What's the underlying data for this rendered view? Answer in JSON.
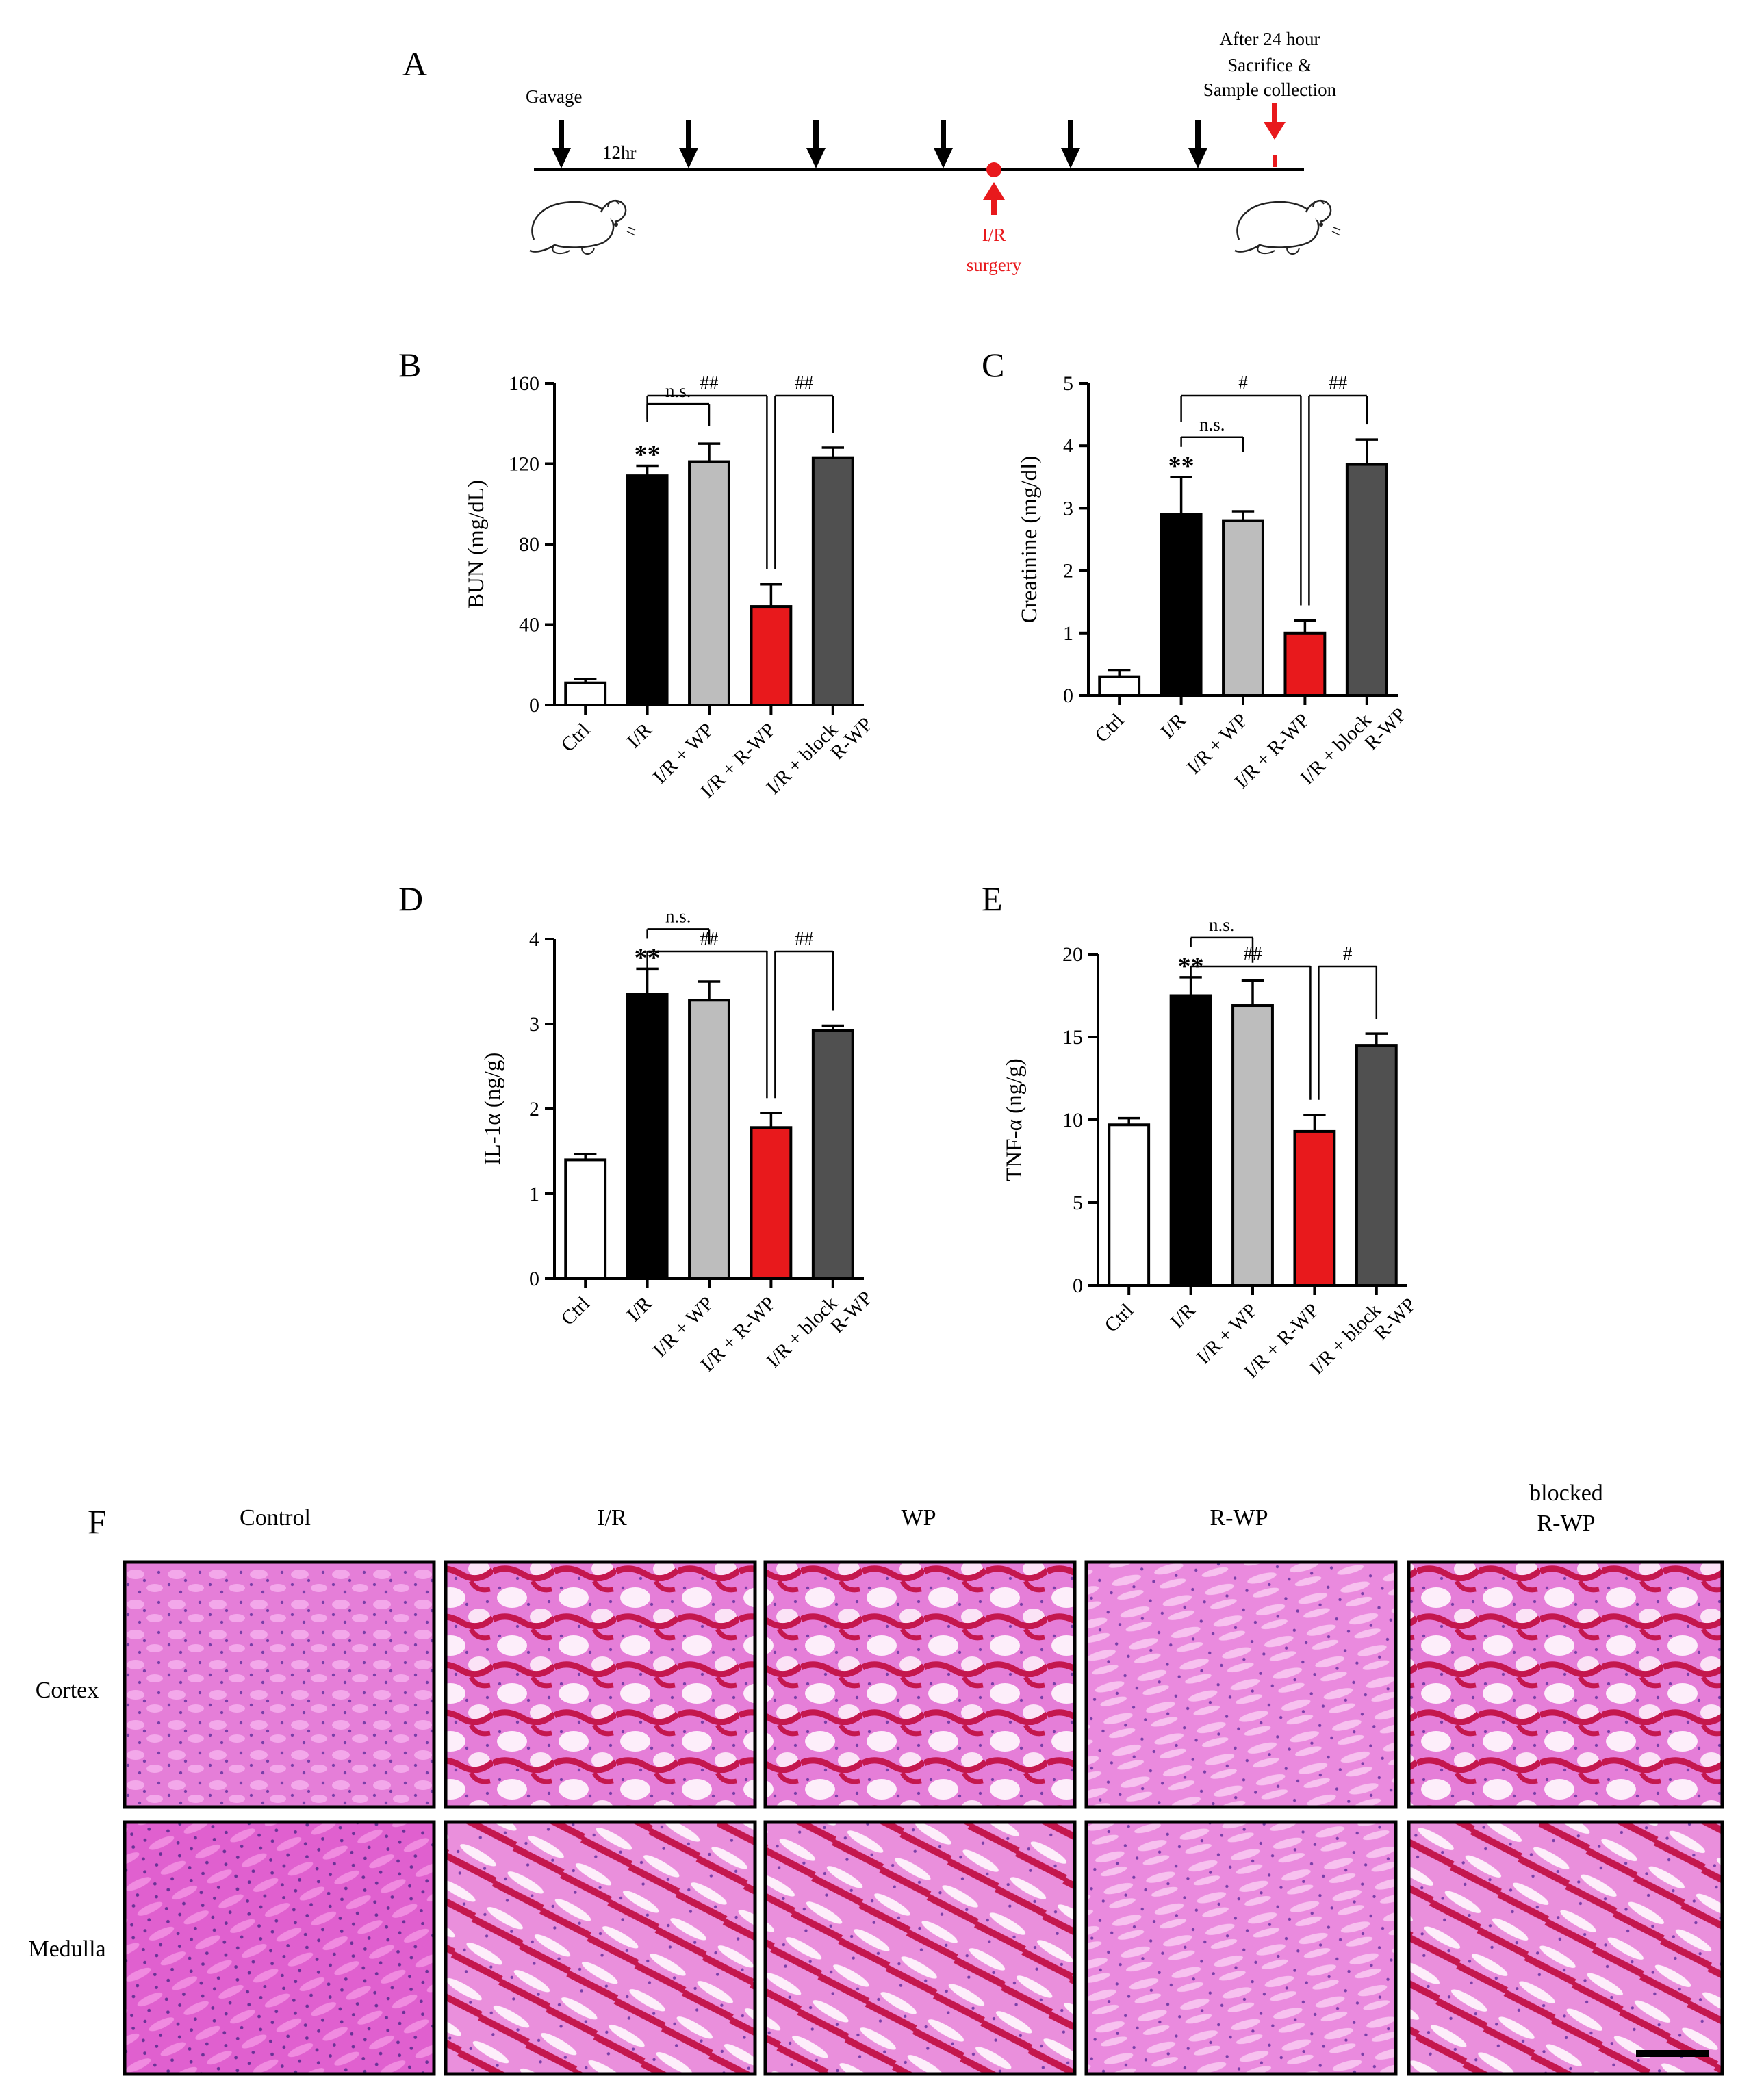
{
  "panel_labels": [
    "A",
    "B",
    "C",
    "D",
    "E",
    "F"
  ],
  "timeline": {
    "gavage_label": "Gavage",
    "interval_label": "12hr",
    "after_lines": [
      "After 24 hour",
      "Sacrifice &",
      "Sample collection"
    ],
    "surgery_lines": [
      "I/R",
      "surgery"
    ],
    "gavage_doses": 6,
    "black_arrow_color": "#000000",
    "red_color": "#e8191c",
    "icons": [
      "mouse-icon",
      "mouse-icon",
      "arrow-down-icon",
      "arrow-up-icon"
    ]
  },
  "chart_data": [
    {
      "id": "B",
      "type": "bar",
      "categories": [
        "Ctrl",
        "I/R",
        "I/R + WP",
        "I/R + R-WP",
        "I/R + block R-WP"
      ],
      "category_lines": [
        [
          "Ctrl"
        ],
        [
          "I/R"
        ],
        [
          "I/R + WP"
        ],
        [
          "I/R + R-WP"
        ],
        [
          "I/R + block",
          "R-WP"
        ]
      ],
      "values": [
        11,
        114,
        121,
        49,
        123
      ],
      "errors": [
        2,
        5,
        9,
        11,
        5
      ],
      "colors": [
        "#ffffff",
        "#000000",
        "#bdbdbd",
        "#e8191c",
        "#505050"
      ],
      "ylabel": "BUN  (mg/dL)",
      "ylim": [
        0,
        160
      ],
      "yticks": [
        0,
        40,
        80,
        120,
        160
      ],
      "stars": [
        {
          "bar": 1,
          "text": "**"
        }
      ],
      "brackets": [
        {
          "label": "n.s.",
          "from": 1,
          "to": 2,
          "type": "simple"
        },
        {
          "label": "##",
          "from": 1,
          "to": 3,
          "type": "double"
        },
        {
          "label": "##",
          "from": 3,
          "to": 4,
          "type": "simple"
        }
      ],
      "grid": false
    },
    {
      "id": "C",
      "type": "bar",
      "categories": [
        "Ctrl",
        "I/R",
        "I/R + WP",
        "I/R + R-WP",
        "I/R + block R-WP"
      ],
      "category_lines": [
        [
          "Ctrl"
        ],
        [
          "I/R"
        ],
        [
          "I/R + WP"
        ],
        [
          "I/R + R-WP"
        ],
        [
          "I/R + block",
          "R-WP"
        ]
      ],
      "values": [
        0.3,
        2.9,
        2.8,
        1.0,
        3.7
      ],
      "errors": [
        0.1,
        0.6,
        0.15,
        0.2,
        0.4
      ],
      "colors": [
        "#ffffff",
        "#000000",
        "#bdbdbd",
        "#e8191c",
        "#505050"
      ],
      "ylabel": "Creatinine (mg/dl)",
      "ylim": [
        0,
        5
      ],
      "yticks": [
        0,
        1,
        2,
        3,
        4,
        5
      ],
      "stars": [
        {
          "bar": 1,
          "text": "**"
        }
      ],
      "brackets": [
        {
          "label": "n.s.",
          "from": 1,
          "to": 2,
          "type": "simple"
        },
        {
          "label": "#",
          "from": 1,
          "to": 3,
          "type": "double"
        },
        {
          "label": "##",
          "from": 3,
          "to": 4,
          "type": "simple"
        }
      ],
      "grid": false
    },
    {
      "id": "D",
      "type": "bar",
      "categories": [
        "Ctrl",
        "I/R",
        "I/R + WP",
        "I/R + R-WP",
        "I/R + block R-WP"
      ],
      "category_lines": [
        [
          "Ctrl"
        ],
        [
          "I/R"
        ],
        [
          "I/R + WP"
        ],
        [
          "I/R + R-WP"
        ],
        [
          "I/R + block",
          "R-WP"
        ]
      ],
      "values": [
        1.4,
        3.35,
        3.28,
        1.78,
        2.92
      ],
      "errors": [
        0.07,
        0.3,
        0.22,
        0.17,
        0.06
      ],
      "colors": [
        "#ffffff",
        "#000000",
        "#bdbdbd",
        "#e8191c",
        "#505050"
      ],
      "ylabel": "IL-1α (ng/g)",
      "ylim": [
        0,
        4
      ],
      "yticks": [
        0,
        1,
        2,
        3,
        4
      ],
      "stars": [
        {
          "bar": 1,
          "text": "**"
        }
      ],
      "brackets": [
        {
          "label": "n.s.",
          "from": 1,
          "to": 2,
          "type": "simple"
        },
        {
          "label": "##",
          "from": 1,
          "to": 3,
          "type": "double"
        },
        {
          "label": "##",
          "from": 3,
          "to": 4,
          "type": "simple"
        }
      ],
      "grid": false
    },
    {
      "id": "E",
      "type": "bar",
      "categories": [
        "Ctrl",
        "I/R",
        "I/R + WP",
        "I/R + R-WP",
        "I/R + block R-WP"
      ],
      "category_lines": [
        [
          "Ctrl"
        ],
        [
          "I/R"
        ],
        [
          "I/R + WP"
        ],
        [
          "I/R + R-WP"
        ],
        [
          "I/R + block",
          "R-WP"
        ]
      ],
      "values": [
        9.7,
        17.5,
        16.9,
        9.3,
        14.5
      ],
      "errors": [
        0.4,
        1.1,
        1.5,
        1.0,
        0.7
      ],
      "colors": [
        "#ffffff",
        "#000000",
        "#bdbdbd",
        "#e8191c",
        "#505050"
      ],
      "ylabel": "TNF-α (ng/g)",
      "ylim": [
        0,
        20
      ],
      "yticks": [
        0,
        5,
        10,
        15,
        20
      ],
      "stars": [
        {
          "bar": 1,
          "text": "**"
        }
      ],
      "brackets": [
        {
          "label": "n.s.",
          "from": 1,
          "to": 2,
          "type": "simple"
        },
        {
          "label": "##",
          "from": 1,
          "to": 3,
          "type": "double"
        },
        {
          "label": "#",
          "from": 3,
          "to": 4,
          "type": "simple"
        }
      ],
      "grid": false
    }
  ],
  "histology": {
    "columns": [
      [
        "Control"
      ],
      [
        "I/R"
      ],
      [
        "WP"
      ],
      [
        "R-WP"
      ],
      [
        "blocked",
        "R-WP"
      ]
    ],
    "rows": [
      "Cortex",
      "Medulla"
    ],
    "tissue_color": "#e678d6",
    "nuclei_color": "#7a3fa8",
    "blood_color": "#c4174e",
    "lumen_color": "#fff4fb",
    "scale_bar_color": "#000000"
  }
}
